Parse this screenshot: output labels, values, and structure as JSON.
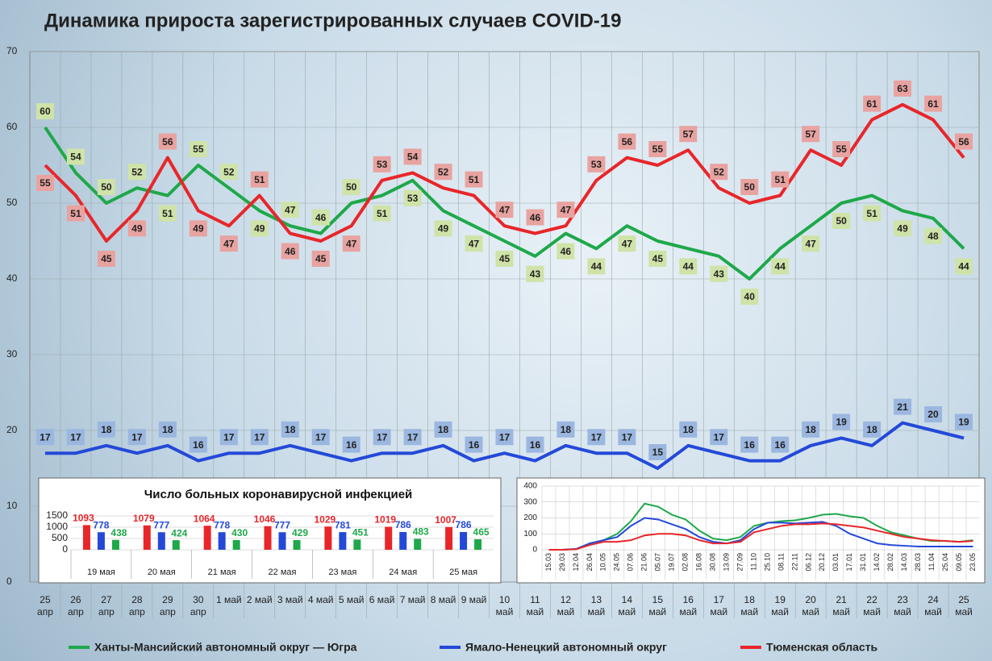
{
  "chart_data": [
    {
      "type": "line",
      "title": "Динамика прироста зарегистрированных случаев COVID-19",
      "categories": [
        "25 апр",
        "26 апр",
        "27 апр",
        "28 апр",
        "29 апр",
        "30 апр",
        "1 май",
        "2 май",
        "3 май",
        "4 май",
        "5 май",
        "6 май",
        "7 май",
        "8 май",
        "9 май",
        "10 май",
        "11 май",
        "12 май",
        "13 май",
        "14 май",
        "15 май",
        "16 май",
        "17 май",
        "18 май",
        "19 май",
        "20 май",
        "21 май",
        "22 май",
        "23 май",
        "24 май",
        "25 май"
      ],
      "series": [
        {
          "name": "Ханты-Мансийский автономный округ — Югра",
          "color": "#1ea84a",
          "label_color": "#cfe3a8",
          "values": [
            60,
            54,
            50,
            52,
            51,
            55,
            52,
            49,
            47,
            46,
            50,
            51,
            53,
            49,
            47,
            45,
            43,
            46,
            44,
            47,
            45,
            44,
            43,
            40,
            44,
            47,
            50,
            51,
            49,
            48,
            44
          ]
        },
        {
          "name": "Ямало-Ненецкий автономный округ",
          "color": "#2449d8",
          "label_color": "#9bb7e0",
          "values": [
            17,
            17,
            18,
            17,
            18,
            16,
            17,
            17,
            18,
            17,
            16,
            17,
            17,
            18,
            16,
            17,
            16,
            18,
            17,
            17,
            15,
            18,
            17,
            16,
            16,
            18,
            19,
            18,
            21,
            20,
            19
          ]
        },
        {
          "name": "Тюменская область",
          "color": "#e8262a",
          "label_color": "#e8a3a0",
          "values": [
            55,
            51,
            45,
            49,
            56,
            49,
            47,
            51,
            46,
            45,
            47,
            53,
            54,
            52,
            51,
            47,
            46,
            47,
            53,
            56,
            55,
            57,
            52,
            50,
            51,
            57,
            55,
            61,
            63,
            61,
            56
          ]
        }
      ],
      "ylim": [
        0,
        70
      ],
      "yticks": [
        0,
        10,
        20,
        30,
        40,
        50,
        60,
        70
      ],
      "grid": true
    },
    {
      "type": "bar",
      "title": "Число больных коронавирусной инфекцией",
      "categories": [
        "19 мая",
        "20 мая",
        "21 мая",
        "22 мая",
        "23 мая",
        "24 мая",
        "25 мая"
      ],
      "series": [
        {
          "color": "#e8262a",
          "values": [
            1093,
            1079,
            1064,
            1046,
            1029,
            1019,
            1007
          ]
        },
        {
          "color": "#2449d8",
          "values": [
            778,
            777,
            778,
            777,
            781,
            786,
            786
          ]
        },
        {
          "color": "#1ea84a",
          "values": [
            438,
            424,
            430,
            429,
            451,
            483,
            465
          ]
        }
      ],
      "ylim": [
        0,
        1500
      ],
      "yticks": [
        0,
        500,
        1000,
        1500
      ],
      "grid": true
    },
    {
      "type": "line",
      "categories": [
        "15.03",
        "29.03",
        "12.04",
        "26.04",
        "10.05",
        "24.05",
        "07.06",
        "21.06",
        "05.07",
        "19.07",
        "02.08",
        "16.08",
        "30.08",
        "13.09",
        "27.09",
        "11.10",
        "25.10",
        "08.11",
        "22.11",
        "06.12",
        "20.12",
        "03.01",
        "17.01",
        "31.01",
        "14.02",
        "28.02",
        "14.03",
        "28.03",
        "11.04",
        "25.04",
        "09.05",
        "23.05"
      ],
      "series": [
        {
          "color": "#1ea84a",
          "values": [
            0,
            0,
            5,
            40,
            60,
            100,
            180,
            290,
            270,
            220,
            190,
            120,
            70,
            60,
            80,
            150,
            170,
            180,
            185,
            200,
            220,
            225,
            210,
            200,
            150,
            110,
            90,
            70,
            55,
            55,
            50,
            60
          ]
        },
        {
          "color": "#2449d8",
          "values": [
            0,
            0,
            5,
            40,
            60,
            80,
            150,
            200,
            190,
            160,
            130,
            80,
            50,
            40,
            60,
            130,
            170,
            170,
            165,
            170,
            175,
            150,
            100,
            70,
            40,
            30,
            25,
            20,
            20,
            20,
            20,
            20
          ]
        },
        {
          "color": "#e8262a",
          "values": [
            0,
            0,
            3,
            30,
            50,
            50,
            60,
            90,
            100,
            100,
            90,
            60,
            40,
            40,
            50,
            110,
            130,
            150,
            160,
            160,
            165,
            160,
            150,
            140,
            120,
            100,
            80,
            70,
            60,
            55,
            50,
            55
          ]
        }
      ],
      "ylim": [
        0,
        400
      ],
      "yticks": [
        0,
        100,
        200,
        300,
        400
      ],
      "grid": true
    }
  ]
}
